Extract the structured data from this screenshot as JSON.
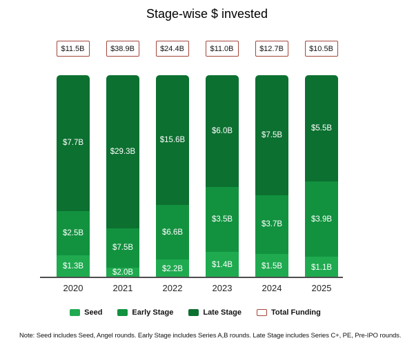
{
  "chart_data": {
    "type": "bar",
    "variant": "100-percent-stacked-columns",
    "title": "Stage-wise $ invested",
    "categories": [
      "2020",
      "2021",
      "2022",
      "2023",
      "2024",
      "2025"
    ],
    "series": [
      {
        "name": "Seed",
        "color": "#1FAA50",
        "values": [
          1.3,
          2.0,
          2.2,
          1.4,
          1.5,
          1.1
        ],
        "labels": [
          "$1.3B",
          "$2.0B",
          "$2.2B",
          "$1.4B",
          "$1.5B",
          "$1.1B"
        ]
      },
      {
        "name": "Early Stage",
        "color": "#12923F",
        "values": [
          2.5,
          7.5,
          6.6,
          3.5,
          3.7,
          3.9
        ],
        "labels": [
          "$2.5B",
          "$7.5B",
          "$6.6B",
          "$3.5B",
          "$3.7B",
          "$3.9B"
        ]
      },
      {
        "name": "Late Stage",
        "color": "#0C7030",
        "values": [
          7.7,
          29.3,
          15.6,
          6.0,
          7.5,
          5.5
        ],
        "labels": [
          "$7.7B",
          "$29.3B",
          "$15.6B",
          "$6.0B",
          "$7.5B",
          "$5.5B"
        ]
      }
    ],
    "totals": {
      "name": "Total Funding",
      "values": [
        11.5,
        38.9,
        24.4,
        11.0,
        12.7,
        10.5
      ],
      "labels": [
        "$11.5B",
        "$38.9B",
        "$24.4B",
        "$11.0B",
        "$12.7B",
        "$10.5B"
      ],
      "box_border_color": "#A2453A"
    },
    "legend": [
      {
        "label": "Seed",
        "swatch_color": "#1FAA50",
        "outlined": false
      },
      {
        "label": "Early Stage",
        "swatch_color": "#12923F",
        "outlined": false
      },
      {
        "label": "Late Stage",
        "swatch_color": "#0C7030",
        "outlined": false
      },
      {
        "label": "Total Funding",
        "swatch_color": "#FFFFFF",
        "outlined": true,
        "border_color": "#A2453A"
      }
    ],
    "legend_position": "bottom",
    "grid": false,
    "note": "Note: Seed includes Seed, Angel rounds. Early Stage includes Series A,B rounds. Late Stage includes Series C+, PE, Pre-IPO rounds."
  },
  "layout_colors": {
    "axis_line": "#4d4d4d",
    "segment_label_text": "#ffffff",
    "background": "#ffffff"
  }
}
